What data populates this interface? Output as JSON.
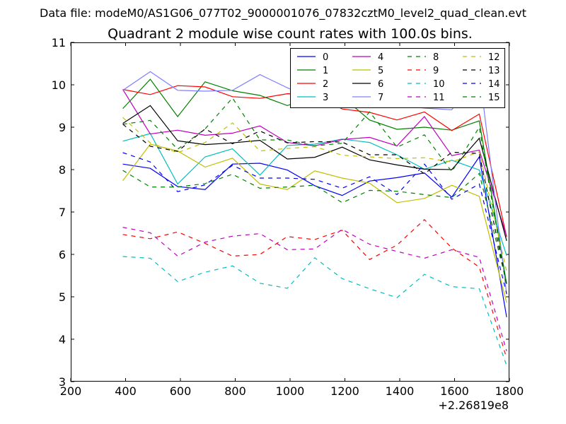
{
  "header": {
    "datafile": "Data file: modeM0/AS1G06_077T02_9000001076_07832cztM0_level2_quad_clean.evt"
  },
  "chart_data": {
    "type": "line",
    "title": "Quadrant 2 module wise count rates with 100.0s bins.",
    "xlabel": "",
    "ylabel": "",
    "x_offset_label": "+2.26819e8",
    "xlim": [
      200,
      1800
    ],
    "ylim": [
      3,
      11
    ],
    "xticks": [
      200,
      400,
      600,
      800,
      1000,
      1200,
      1400,
      1600,
      1800
    ],
    "yticks": [
      3,
      4,
      5,
      6,
      7,
      8,
      9,
      10,
      11
    ],
    "xtick_labels": [
      "200",
      "400",
      "600",
      "800",
      "1000",
      "1200",
      "1400",
      "1600",
      "1800"
    ],
    "ytick_labels": [
      "3",
      "4",
      "5",
      "6",
      "7",
      "8",
      "9",
      "10",
      "11"
    ],
    "x": [
      390,
      490,
      590,
      690,
      790,
      890,
      990,
      1090,
      1190,
      1290,
      1390,
      1490,
      1590,
      1690,
      1790
    ],
    "legend_position": "top-right",
    "series": [
      {
        "name": "0",
        "color": "#0000ff",
        "dash": "solid",
        "values": [
          8.13,
          8.03,
          7.6,
          7.53,
          8.13,
          8.15,
          7.99,
          7.62,
          7.39,
          7.73,
          7.81,
          7.92,
          7.35,
          8.3,
          4.52
        ]
      },
      {
        "name": "1",
        "color": "#008000",
        "dash": "solid",
        "values": [
          9.44,
          10.13,
          9.25,
          10.07,
          9.86,
          9.75,
          9.51,
          9.74,
          9.72,
          9.17,
          8.95,
          9.0,
          8.93,
          9.15,
          5.3
        ]
      },
      {
        "name": "2",
        "color": "#ff0000",
        "dash": "solid",
        "values": [
          9.89,
          9.77,
          9.98,
          9.95,
          9.72,
          9.68,
          9.79,
          9.78,
          9.43,
          9.35,
          9.17,
          9.36,
          8.92,
          9.31,
          6.41
        ]
      },
      {
        "name": "3",
        "color": "#00bfbf",
        "dash": "solid",
        "values": [
          8.67,
          8.85,
          7.66,
          8.3,
          8.49,
          7.87,
          8.57,
          8.6,
          8.72,
          8.64,
          8.35,
          8.01,
          8.22,
          7.99,
          5.97
        ]
      },
      {
        "name": "4",
        "color": "#bf00bf",
        "dash": "solid",
        "values": [
          9.89,
          8.84,
          8.93,
          8.81,
          8.86,
          9.03,
          8.64,
          8.56,
          8.71,
          8.76,
          8.56,
          9.25,
          8.33,
          8.46,
          6.43
        ]
      },
      {
        "name": "5",
        "color": "#bfbf00",
        "dash": "solid",
        "values": [
          7.74,
          8.6,
          8.44,
          8.06,
          8.27,
          7.66,
          7.53,
          7.97,
          7.8,
          7.68,
          7.22,
          7.32,
          7.63,
          7.37,
          4.86
        ]
      },
      {
        "name": "6",
        "color": "#000000",
        "dash": "solid",
        "values": [
          9.09,
          9.51,
          8.68,
          8.59,
          8.63,
          8.69,
          8.25,
          8.29,
          8.53,
          8.23,
          8.11,
          8.01,
          8.0,
          8.74,
          6.32
        ]
      },
      {
        "name": "7",
        "color": "#7f7fff",
        "dash": "solid",
        "values": [
          9.87,
          10.31,
          9.87,
          9.85,
          9.87,
          10.24,
          9.93,
          9.64,
          9.58,
          10.01,
          9.53,
          9.45,
          9.41,
          10.33,
          5.06
        ]
      },
      {
        "name": "8",
        "color": "#008000",
        "dash": "dashed",
        "values": [
          9.07,
          9.16,
          8.48,
          8.96,
          9.69,
          8.7,
          8.7,
          8.56,
          8.62,
          9.36,
          8.53,
          8.82,
          7.95,
          9.0,
          5.25
        ]
      },
      {
        "name": "9",
        "color": "#ff0000",
        "dash": "dashed",
        "values": [
          6.47,
          6.37,
          6.53,
          6.26,
          5.96,
          6.0,
          6.42,
          6.35,
          6.57,
          5.88,
          6.22,
          6.82,
          6.15,
          5.7,
          3.55
        ]
      },
      {
        "name": "10",
        "color": "#00bfbf",
        "dash": "dashed",
        "values": [
          5.95,
          5.91,
          5.36,
          5.58,
          5.73,
          5.32,
          5.2,
          5.92,
          5.43,
          5.19,
          4.98,
          5.53,
          5.24,
          5.19,
          3.38
        ]
      },
      {
        "name": "11",
        "color": "#bf00bf",
        "dash": "dashed",
        "values": [
          6.64,
          6.51,
          5.96,
          6.29,
          6.43,
          6.49,
          6.11,
          6.13,
          6.59,
          6.24,
          6.07,
          5.91,
          6.11,
          5.93,
          3.72
        ]
      },
      {
        "name": "12",
        "color": "#bfbf00",
        "dash": "dashed",
        "values": [
          9.23,
          8.63,
          8.4,
          8.64,
          9.1,
          8.44,
          8.5,
          8.54,
          8.34,
          8.3,
          8.26,
          8.28,
          8.18,
          8.42,
          5.6
        ]
      },
      {
        "name": "13",
        "color": "#000000",
        "dash": "dashed",
        "values": [
          9.07,
          8.55,
          8.43,
          8.96,
          8.61,
          8.91,
          8.63,
          8.66,
          8.65,
          8.35,
          8.35,
          7.9,
          8.41,
          8.38,
          5.3
        ]
      },
      {
        "name": "14",
        "color": "#0000ff",
        "dash": "dashed",
        "values": [
          8.4,
          8.18,
          7.48,
          7.64,
          8.1,
          7.8,
          7.8,
          7.77,
          7.56,
          7.83,
          7.41,
          8.13,
          7.3,
          7.66,
          5.07
        ]
      },
      {
        "name": "15",
        "color": "#008000",
        "dash": "dashed",
        "values": [
          7.98,
          7.59,
          7.59,
          7.67,
          7.89,
          7.56,
          7.59,
          7.63,
          7.22,
          7.51,
          7.49,
          7.41,
          7.34,
          7.91,
          5.33
        ]
      }
    ]
  }
}
